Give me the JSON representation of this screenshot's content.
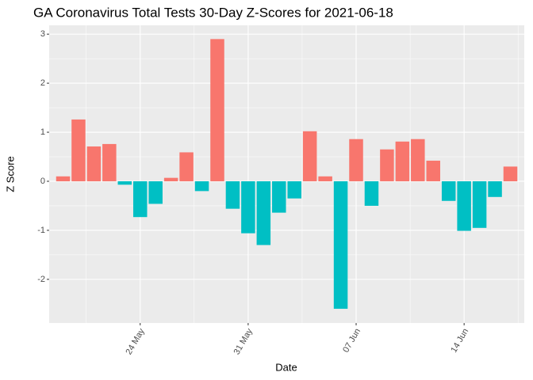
{
  "chart_data": {
    "type": "bar",
    "title": "GA Coronavirus Total Tests 30-Day Z-Scores for 2021-06-18",
    "x_label": "Date",
    "y_label": "Z Score",
    "categories": [
      null,
      null,
      null,
      null,
      null,
      "24 May",
      null,
      null,
      null,
      null,
      null,
      null,
      "31 May",
      null,
      null,
      null,
      null,
      null,
      null,
      "07 Jun",
      null,
      null,
      null,
      null,
      null,
      null,
      "14 Jun",
      null,
      null,
      null
    ],
    "values": [
      0.1,
      1.26,
      0.71,
      0.76,
      -0.07,
      -0.73,
      -0.46,
      0.07,
      0.59,
      -0.2,
      2.9,
      -0.56,
      -1.06,
      -1.3,
      -0.64,
      -0.35,
      1.02,
      0.1,
      -2.6,
      0.86,
      -0.5,
      0.65,
      0.81,
      0.86,
      0.42,
      -0.4,
      -1.01,
      -0.95,
      -0.32,
      0.3
    ],
    "positive_color": "#F8766D",
    "negative_color": "#00BFC4",
    "ylim": [
      -2.89,
      3.18
    ],
    "yticks": [
      -2,
      -1,
      0,
      1,
      2,
      3
    ],
    "grid": true
  }
}
